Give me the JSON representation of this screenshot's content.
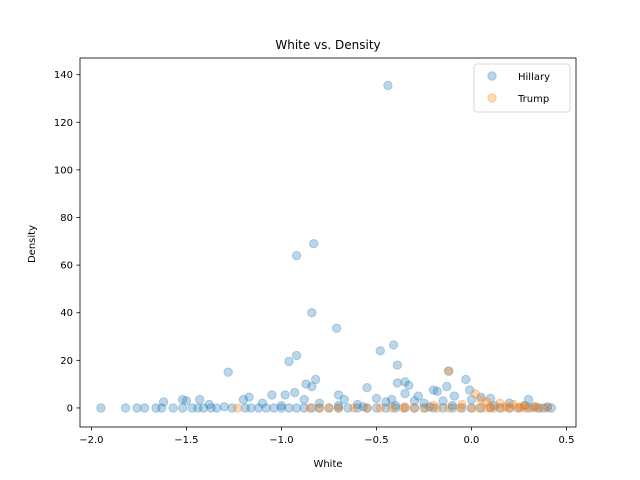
{
  "chart_data": {
    "type": "scatter",
    "title": "White vs. Density",
    "xlabel": "White",
    "ylabel": "Density",
    "xlim": [
      -2.06,
      0.55
    ],
    "ylim": [
      -8,
      147
    ],
    "xticks": [
      -2.0,
      -1.5,
      -1.0,
      -0.5,
      0.0,
      0.5
    ],
    "xtick_labels": [
      "−2.0",
      "−1.5",
      "−1.0",
      "−0.5",
      "0.0",
      "0.5"
    ],
    "yticks": [
      0,
      20,
      40,
      60,
      80,
      100,
      120,
      140
    ],
    "ytick_labels": [
      "0",
      "20",
      "40",
      "60",
      "80",
      "100",
      "120",
      "140"
    ],
    "grid": false,
    "legend_position": "top-right",
    "series": [
      {
        "name": "Hillary",
        "color": "#1f77b4",
        "points": [
          [
            -0.44,
            135.5
          ],
          [
            -0.83,
            69
          ],
          [
            -0.92,
            64
          ],
          [
            -0.84,
            40
          ],
          [
            -0.71,
            33.5
          ],
          [
            -0.41,
            26.5
          ],
          [
            -0.48,
            24
          ],
          [
            -0.92,
            22
          ],
          [
            -0.96,
            19.5
          ],
          [
            -0.39,
            18
          ],
          [
            -1.28,
            15
          ],
          [
            -0.12,
            15.5
          ],
          [
            -0.82,
            12
          ],
          [
            -0.03,
            12
          ],
          [
            -0.39,
            10.5
          ],
          [
            -0.35,
            11
          ],
          [
            -0.87,
            10
          ],
          [
            -0.13,
            9
          ],
          [
            -0.33,
            9.5
          ],
          [
            -0.84,
            9
          ],
          [
            -0.55,
            8.5
          ],
          [
            -0.2,
            7.5
          ],
          [
            -0.18,
            7
          ],
          [
            -0.01,
            7.5
          ],
          [
            -0.93,
            6.5
          ],
          [
            -1.05,
            5.5
          ],
          [
            -0.98,
            5.5
          ],
          [
            -0.7,
            5.5
          ],
          [
            -0.35,
            6
          ],
          [
            -0.28,
            5
          ],
          [
            -0.09,
            5
          ],
          [
            0.05,
            4.5
          ],
          [
            0.1,
            4
          ],
          [
            -1.17,
            4.5
          ],
          [
            -1.52,
            3.5
          ],
          [
            -1.5,
            3
          ],
          [
            -1.43,
            3.5
          ],
          [
            -1.2,
            3.5
          ],
          [
            -0.88,
            3.5
          ],
          [
            -0.67,
            3.5
          ],
          [
            -0.5,
            4
          ],
          [
            -0.42,
            3.5
          ],
          [
            -0.3,
            3
          ],
          [
            -0.15,
            3
          ],
          [
            0.0,
            3.5
          ],
          [
            0.3,
            3.5
          ],
          [
            -1.62,
            2.5
          ],
          [
            -1.38,
            1.5
          ],
          [
            -1.1,
            2
          ],
          [
            -0.8,
            2
          ],
          [
            -0.6,
            1.5
          ],
          [
            -0.45,
            2.5
          ],
          [
            -0.25,
            2
          ],
          [
            0.2,
            2
          ],
          [
            0.4,
            0.5
          ],
          [
            -1.95,
            0
          ],
          [
            -1.82,
            0
          ],
          [
            -1.76,
            0
          ],
          [
            -1.72,
            0
          ],
          [
            -1.66,
            0
          ],
          [
            -1.63,
            0
          ],
          [
            -1.57,
            0
          ],
          [
            -1.52,
            0
          ],
          [
            -1.47,
            0
          ],
          [
            -1.44,
            0
          ],
          [
            -1.41,
            0
          ],
          [
            -1.37,
            0
          ],
          [
            -1.34,
            0
          ],
          [
            -1.26,
            0
          ],
          [
            -1.19,
            0
          ],
          [
            -1.16,
            0
          ],
          [
            -1.12,
            0
          ],
          [
            -1.08,
            0
          ],
          [
            -1.04,
            0
          ],
          [
            -1.0,
            0
          ],
          [
            -0.96,
            0
          ],
          [
            -0.92,
            0
          ],
          [
            -0.88,
            0
          ],
          [
            -0.84,
            0
          ],
          [
            -0.8,
            0
          ],
          [
            -0.75,
            0
          ],
          [
            -0.7,
            0
          ],
          [
            -0.65,
            0
          ],
          [
            -0.6,
            0
          ],
          [
            -0.55,
            0
          ],
          [
            -0.5,
            0
          ],
          [
            -0.45,
            0
          ],
          [
            -0.4,
            0
          ],
          [
            -0.35,
            0
          ],
          [
            -0.3,
            0
          ],
          [
            -0.25,
            0
          ],
          [
            -0.2,
            0
          ],
          [
            -0.15,
            0
          ],
          [
            -0.1,
            0
          ],
          [
            -0.05,
            0
          ],
          [
            0.0,
            0
          ],
          [
            0.05,
            0
          ],
          [
            0.1,
            0
          ],
          [
            0.15,
            0
          ],
          [
            0.2,
            0
          ],
          [
            0.25,
            0
          ],
          [
            0.3,
            0
          ],
          [
            0.35,
            0
          ],
          [
            0.38,
            0
          ],
          [
            0.42,
            0
          ],
          [
            -1.3,
            0.5
          ],
          [
            -1.0,
            1
          ],
          [
            -0.7,
            1
          ],
          [
            -0.4,
            1
          ],
          [
            -0.1,
            1
          ],
          [
            0.12,
            1
          ],
          [
            0.28,
            1
          ],
          [
            -0.57,
            0.5
          ],
          [
            -0.22,
            0.5
          ],
          [
            0.33,
            0.5
          ]
        ]
      },
      {
        "name": "Trump",
        "color": "#ff7f0e",
        "points": [
          [
            -0.12,
            15.5
          ],
          [
            0.02,
            6
          ],
          [
            0.05,
            3.5
          ],
          [
            0.08,
            2.5
          ],
          [
            0.15,
            2
          ],
          [
            0.22,
            1.5
          ],
          [
            0.28,
            1
          ],
          [
            -0.05,
            1.5
          ],
          [
            -0.2,
            1
          ],
          [
            -0.35,
            0.5
          ],
          [
            -1.23,
            0
          ],
          [
            -0.85,
            0
          ],
          [
            -0.8,
            0
          ],
          [
            -0.75,
            0
          ],
          [
            -0.7,
            0
          ],
          [
            -0.62,
            0
          ],
          [
            -0.55,
            0
          ],
          [
            -0.48,
            0
          ],
          [
            -0.42,
            0
          ],
          [
            -0.36,
            0
          ],
          [
            -0.3,
            0
          ],
          [
            -0.24,
            0
          ],
          [
            -0.18,
            0
          ],
          [
            -0.12,
            0
          ],
          [
            -0.06,
            0
          ],
          [
            0.0,
            0
          ],
          [
            0.04,
            0
          ],
          [
            0.08,
            0
          ],
          [
            0.12,
            0
          ],
          [
            0.16,
            0
          ],
          [
            0.2,
            0
          ],
          [
            0.24,
            0
          ],
          [
            0.28,
            0
          ],
          [
            0.32,
            0
          ],
          [
            0.36,
            0
          ],
          [
            0.4,
            0
          ],
          [
            0.1,
            0.5
          ],
          [
            0.18,
            0.5
          ],
          [
            0.26,
            0.5
          ],
          [
            0.34,
            0.5
          ]
        ]
      }
    ]
  }
}
